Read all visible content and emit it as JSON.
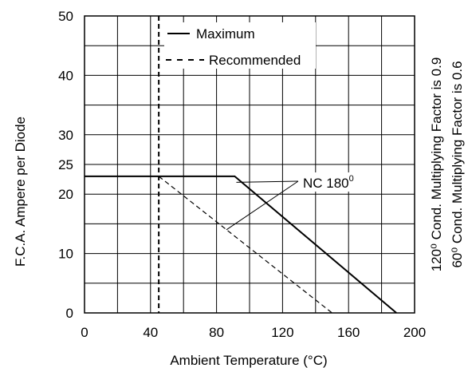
{
  "chart_data": {
    "type": "line",
    "xlabel": "Ambient Temperature (°C)",
    "ylabel": "F.C.A. Ampere per Diode",
    "xlim": [
      0,
      200
    ],
    "ylim": [
      0,
      50
    ],
    "grid": true,
    "x_ticks": [
      0,
      40,
      80,
      120,
      160,
      200
    ],
    "y_ticks": [
      0,
      10,
      20,
      25,
      30,
      40,
      50
    ],
    "x_gridlines": [
      0,
      20,
      40,
      60,
      80,
      100,
      120,
      140,
      160,
      180,
      200
    ],
    "y_gridlines": [
      0,
      5,
      10,
      15,
      20,
      25,
      30,
      35,
      40,
      45,
      50
    ],
    "series": [
      {
        "name": "Maximum",
        "style": "solid",
        "x": [
          0,
          91,
          189
        ],
        "y": [
          23,
          23,
          0
        ]
      },
      {
        "name": "Recommended",
        "style": "dashed",
        "x": [
          45,
          150
        ],
        "y": [
          23,
          0
        ]
      }
    ],
    "recommended_limit_x": 45,
    "legend": {
      "placement": "top-center",
      "entries": [
        "Maximum",
        "Recommended"
      ]
    },
    "annotation": {
      "text": "NC 180",
      "degree": "0",
      "targets": [
        {
          "x": 92,
          "y": 22
        },
        {
          "x": 86,
          "y": 14
        }
      ]
    },
    "right_notes": [
      "120⁰ Cond. Multiplying Factor is 0.9",
      "60⁰ Cond. Multiplying Factor is 0.6"
    ]
  }
}
